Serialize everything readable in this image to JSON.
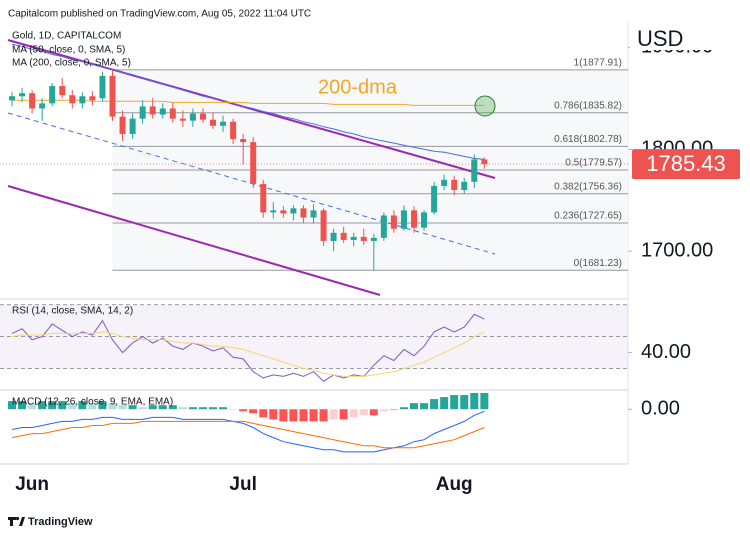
{
  "header": {
    "text": "Capitalcom published on TradingView.com, Aug 05, 2022 11:04 UTC",
    "footer": "TradingView"
  },
  "chart_data": [
    {
      "type": "candlestick",
      "title": "Gold, 1D, CAPITALCOM",
      "currency": "USD",
      "categories": [
        null,
        null,
        "Jun",
        null,
        null,
        null,
        null,
        null,
        null,
        null,
        null,
        null,
        null,
        null,
        null,
        null,
        null,
        null,
        null,
        null,
        null,
        null,
        null,
        "Jul",
        null,
        null,
        null,
        null,
        null,
        null,
        null,
        null,
        null,
        null,
        null,
        null,
        null,
        null,
        null,
        null,
        null,
        null,
        null,
        null,
        "Aug",
        null,
        null,
        null
      ],
      "open": [
        1848,
        1852,
        1855,
        1840,
        1845,
        1862,
        1853,
        1845,
        1852,
        1850,
        1872,
        1832,
        1815,
        1830,
        1842,
        1834,
        1840,
        1830,
        1828,
        1835,
        1829,
        1823,
        1827,
        1810,
        1807,
        1766,
        1738,
        1740,
        1737,
        1742,
        1733,
        1740,
        1710,
        1718,
        1711,
        1714,
        1710,
        1713,
        1735,
        1722,
        1740,
        1723,
        1738,
        1764,
        1770,
        1760,
        1768,
        1790
      ],
      "high": [
        1856,
        1860,
        1858,
        1850,
        1865,
        1870,
        1858,
        1856,
        1857,
        1876,
        1877.91,
        1838,
        1835,
        1848,
        1850,
        1845,
        1846,
        1838,
        1840,
        1840,
        1836,
        1833,
        1830,
        1815,
        1812,
        1770,
        1748,
        1744,
        1745,
        1745,
        1746,
        1742,
        1722,
        1724,
        1718,
        1722,
        1717,
        1738,
        1740,
        1745,
        1744,
        1740,
        1768,
        1775,
        1774,
        1772,
        1795,
        1792
      ],
      "low": [
        1842,
        1846,
        1835,
        1828,
        1842,
        1850,
        1840,
        1840,
        1843,
        1847,
        1828,
        1808,
        1810,
        1825,
        1830,
        1830,
        1826,
        1822,
        1822,
        1826,
        1820,
        1817,
        1805,
        1785,
        1762,
        1733,
        1732,
        1733,
        1730,
        1728,
        1727,
        1705,
        1700,
        1708,
        1705,
        1706,
        1681.23,
        1710,
        1718,
        1720,
        1718,
        1720,
        1736,
        1760,
        1755,
        1756,
        1762,
        1781
      ],
      "close": [
        1852,
        1855,
        1840,
        1845,
        1862,
        1853,
        1845,
        1852,
        1848,
        1872,
        1832,
        1815,
        1830,
        1842,
        1834,
        1840,
        1830,
        1828,
        1835,
        1829,
        1823,
        1827,
        1810,
        1807,
        1766,
        1738,
        1740,
        1737,
        1742,
        1733,
        1740,
        1710,
        1718,
        1711,
        1714,
        1710,
        1713,
        1735,
        1722,
        1740,
        1723,
        1738,
        1764,
        1770,
        1760,
        1768,
        1790,
        1785.43
      ],
      "up_color": "#26a69a",
      "down_color": "#ef5350",
      "series": [
        {
          "name": "MA (50, close, 0, SMA, 5)",
          "color": "#4a6ee0",
          "values": [
            1903,
            1901,
            1898,
            1896,
            1893,
            1891,
            1888,
            1886,
            1883,
            1881,
            1878,
            1875,
            1873,
            1870,
            1867,
            1864,
            1861,
            1858,
            1855,
            1852,
            1850,
            1847,
            1845,
            1842,
            1840,
            1837,
            1835,
            1832,
            1830,
            1827,
            1825,
            1822,
            1820,
            1817,
            1815,
            1812,
            1810,
            1808,
            1806,
            1804,
            1802,
            1800,
            1798,
            1797,
            1795,
            1793,
            1791,
            1790
          ]
        },
        {
          "name": "MA (200, close, 0, SMA, 5)",
          "color": "#f5a623",
          "values": [
            1848,
            1848,
            1848,
            1848,
            1848,
            1848,
            1848,
            1848,
            1847,
            1847,
            1847,
            1847,
            1847,
            1847,
            1847,
            1847,
            1846,
            1846,
            1846,
            1846,
            1846,
            1846,
            1846,
            1846,
            1845,
            1845,
            1845,
            1845,
            1845,
            1845,
            1845,
            1845,
            1844,
            1844,
            1844,
            1844,
            1844,
            1844,
            1844,
            1844,
            1843,
            1843,
            1843,
            1843,
            1843,
            1843,
            1843,
            1843
          ]
        }
      ],
      "ylim": [
        1655,
        1917
      ],
      "yticks": [
        {
          "value": 1700,
          "label": "1700.00"
        },
        {
          "value": 1800,
          "label": "1800.00"
        },
        {
          "value": 1900,
          "label": "1900.00"
        }
      ],
      "last_price": 1785.43,
      "last_price_color": "#ef5350",
      "fib_levels": [
        {
          "value": 1877.91,
          "label": "1(1877.91)"
        },
        {
          "value": 1835.82,
          "label": "0.786(1835.82)"
        },
        {
          "value": 1802.78,
          "label": "0.618(1802.78)"
        },
        {
          "value": 1779.57,
          "label": "0.5(1779.57)"
        },
        {
          "value": 1756.36,
          "label": "0.382(1756.36)"
        },
        {
          "value": 1727.65,
          "label": "0.236(1727.65)"
        },
        {
          "value": 1681.23,
          "label": "0(1681.23)"
        }
      ],
      "annotation": "200-dma"
    },
    {
      "type": "line",
      "title": "RSI (14, close, SMA, 14, 2)",
      "series": [
        {
          "color": "#7e57c2",
          "values": [
            52,
            55,
            48,
            50,
            58,
            54,
            50,
            53,
            51,
            60,
            48,
            40,
            46,
            50,
            46,
            49,
            44,
            42,
            46,
            44,
            41,
            43,
            37,
            36,
            28,
            24,
            26,
            25,
            27,
            25,
            28,
            22,
            26,
            24,
            26,
            25,
            32,
            38,
            35,
            42,
            38,
            44,
            53,
            56,
            53,
            56,
            64,
            61
          ]
        },
        {
          "color": "#f5d76e",
          "values": [
            50,
            51,
            51,
            51,
            52,
            52,
            52,
            52,
            52,
            53,
            52,
            50,
            49,
            48,
            48,
            48,
            47,
            46,
            46,
            45,
            44,
            44,
            43,
            42,
            40,
            38,
            36,
            34,
            32,
            30,
            29,
            27,
            26,
            25,
            25,
            25,
            26,
            27,
            28,
            30,
            32,
            34,
            37,
            40,
            43,
            46,
            50,
            53
          ]
        }
      ],
      "bands": [
        70,
        50,
        30
      ],
      "ylim": [
        19,
        73
      ],
      "yticks": [
        {
          "value": 40,
          "label": "40.00"
        }
      ]
    },
    {
      "type": "macd",
      "title": "MACD (12, 26, close, 9, EMA, EMA)",
      "histogram": [
        4,
        4,
        3,
        4,
        4,
        4,
        3,
        4,
        3,
        4,
        3,
        2,
        2,
        1,
        2,
        2,
        2,
        1,
        1,
        1,
        1,
        1,
        0,
        -1,
        -2,
        -4,
        -5,
        -6,
        -6,
        -6,
        -6,
        -6,
        -5,
        -5,
        -4,
        -3,
        -3,
        -1,
        0,
        1,
        3,
        3,
        5,
        6,
        7,
        7,
        8,
        8
      ],
      "histogram_colors": {
        "up_grow": "#26a69a",
        "up_fall": "#b2dfdb",
        "down_grow": "#ff5252",
        "down_fall": "#ffcdd2"
      },
      "series": [
        {
          "color": "#2962ff",
          "values": [
            -10,
            -9,
            -9,
            -8,
            -7,
            -6,
            -6,
            -5,
            -5,
            -4,
            -4,
            -5,
            -5,
            -5,
            -4,
            -4,
            -4,
            -5,
            -5,
            -5,
            -5,
            -5,
            -6,
            -7,
            -9,
            -12,
            -14,
            -16,
            -17,
            -18,
            -19,
            -20,
            -20,
            -21,
            -21,
            -21,
            -21,
            -20,
            -19,
            -18,
            -16,
            -15,
            -12,
            -10,
            -8,
            -6,
            -3,
            -1
          ]
        },
        {
          "color": "#ff6d00",
          "values": [
            -14,
            -13,
            -12,
            -12,
            -11,
            -10,
            -9,
            -9,
            -8,
            -8,
            -7,
            -7,
            -7,
            -6,
            -6,
            -6,
            -6,
            -6,
            -6,
            -6,
            -6,
            -6,
            -6,
            -6,
            -7,
            -8,
            -9,
            -10,
            -11,
            -12,
            -13,
            -14,
            -15,
            -16,
            -17,
            -18,
            -18,
            -19,
            -19,
            -19,
            -19,
            -18,
            -17,
            -16,
            -15,
            -13,
            -11,
            -9
          ]
        }
      ],
      "ylim": [
        -26,
        8
      ],
      "yticks": [
        {
          "value": 0,
          "label": "0.00"
        }
      ]
    }
  ]
}
